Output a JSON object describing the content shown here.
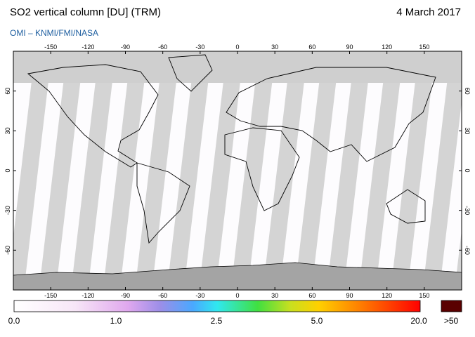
{
  "header": {
    "title": "SO2 vertical column [DU] (TRM)",
    "subtitle": "OMI  –  KNMI/FMI/NASA",
    "date": "4 March 2017"
  },
  "map": {
    "lon_ticks": [
      -150,
      -120,
      -90,
      -60,
      -30,
      0,
      30,
      60,
      90,
      120,
      150
    ],
    "lat_ticks": [
      60,
      30,
      0,
      -30,
      -60
    ]
  },
  "colorbar": {
    "labels": [
      "0.0",
      "1.0",
      "2.5",
      "5.0",
      "20.0"
    ],
    "over_label": ">50"
  }
}
